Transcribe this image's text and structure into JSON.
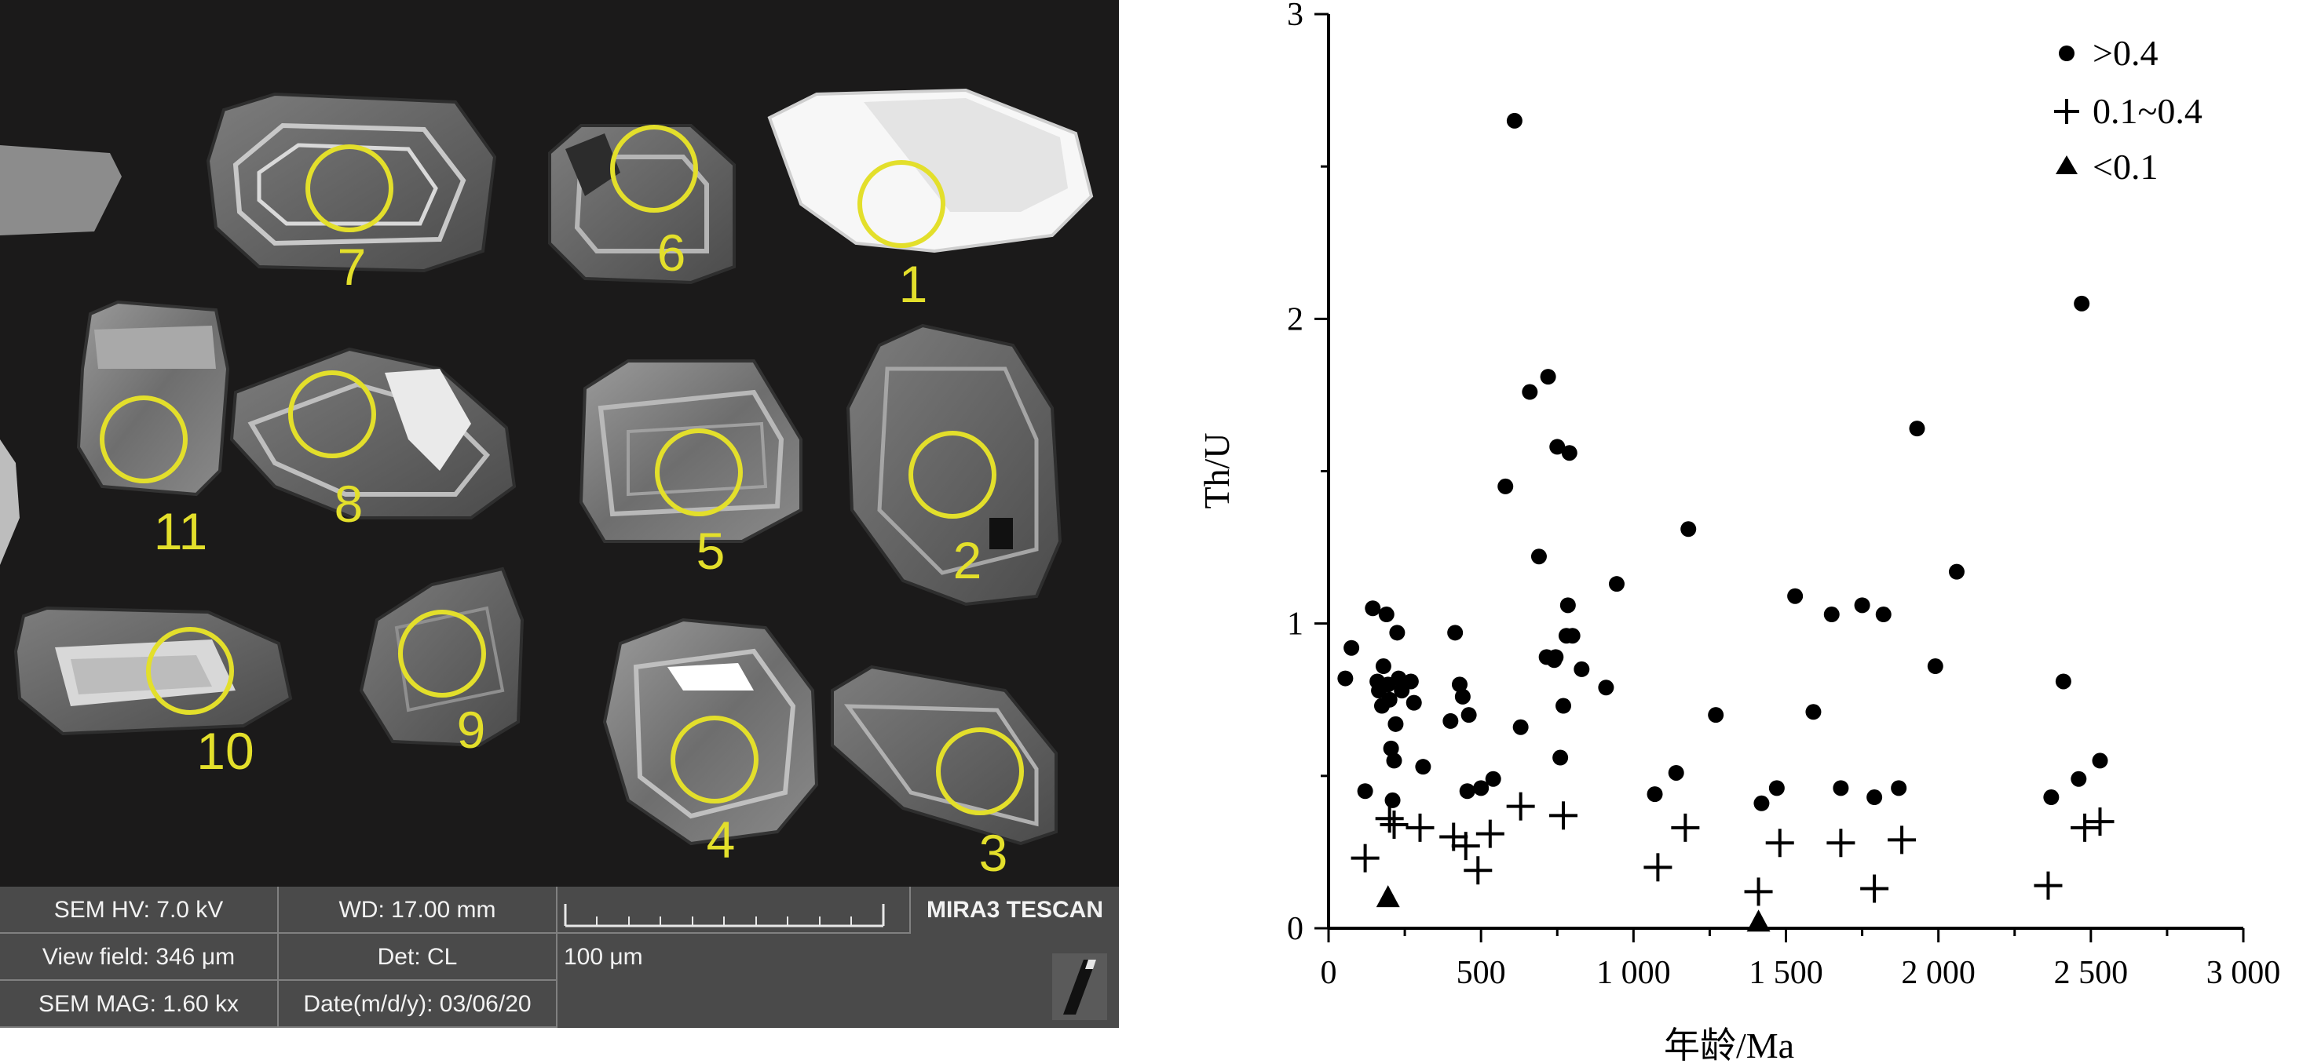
{
  "sem_image": {
    "grain_labels": [
      "1",
      "2",
      "3",
      "4",
      "5",
      "6",
      "7",
      "8",
      "9",
      "10",
      "11"
    ],
    "info": {
      "hv": "SEM HV: 7.0 kV",
      "wd": "WD: 17.00 mm",
      "view_field": "View field: 346 μm",
      "det": "Det: CL",
      "mag": "SEM MAG: 1.60 kx",
      "date": "Date(m/d/y): 03/06/20",
      "scale": "100 μm",
      "brand": "MIRA3 TESCAN"
    }
  },
  "chart_data": {
    "type": "scatter",
    "xlabel": "年龄/Ma",
    "ylabel": "Th/U",
    "xlim": [
      0,
      3000
    ],
    "ylim": [
      0,
      3
    ],
    "xticks": [
      "0",
      "500",
      "1 000",
      "1 500",
      "2 000",
      "2 500",
      "3 000"
    ],
    "yticks": [
      "0",
      "1",
      "2",
      "3"
    ],
    "legend_position": "top-right",
    "series": [
      {
        "name": ">0.4",
        "marker": "circle",
        "points": [
          [
            55,
            0.82
          ],
          [
            75,
            0.92
          ],
          [
            120,
            0.45
          ],
          [
            145,
            1.05
          ],
          [
            160,
            0.81
          ],
          [
            165,
            0.78
          ],
          [
            175,
            0.73
          ],
          [
            180,
            0.86
          ],
          [
            190,
            1.03
          ],
          [
            195,
            0.8
          ],
          [
            200,
            0.75
          ],
          [
            205,
            0.59
          ],
          [
            210,
            0.42
          ],
          [
            215,
            0.55
          ],
          [
            220,
            0.67
          ],
          [
            225,
            0.97
          ],
          [
            230,
            0.82
          ],
          [
            240,
            0.78
          ],
          [
            270,
            0.81
          ],
          [
            280,
            0.74
          ],
          [
            310,
            0.53
          ],
          [
            400,
            0.68
          ],
          [
            415,
            0.97
          ],
          [
            430,
            0.8
          ],
          [
            440,
            0.76
          ],
          [
            455,
            0.45
          ],
          [
            460,
            0.7
          ],
          [
            500,
            0.46
          ],
          [
            540,
            0.49
          ],
          [
            580,
            1.45
          ],
          [
            610,
            2.65
          ],
          [
            630,
            0.66
          ],
          [
            660,
            1.76
          ],
          [
            690,
            1.22
          ],
          [
            715,
            0.89
          ],
          [
            720,
            1.81
          ],
          [
            740,
            0.88
          ],
          [
            745,
            0.89
          ],
          [
            750,
            1.58
          ],
          [
            760,
            0.56
          ],
          [
            770,
            0.73
          ],
          [
            780,
            0.96
          ],
          [
            785,
            1.06
          ],
          [
            790,
            1.56
          ],
          [
            800,
            0.96
          ],
          [
            830,
            0.85
          ],
          [
            910,
            0.79
          ],
          [
            945,
            1.13
          ],
          [
            1070,
            0.44
          ],
          [
            1140,
            0.51
          ],
          [
            1180,
            1.31
          ],
          [
            1270,
            0.7
          ],
          [
            1420,
            0.41
          ],
          [
            1470,
            0.46
          ],
          [
            1530,
            1.09
          ],
          [
            1590,
            0.71
          ],
          [
            1650,
            1.03
          ],
          [
            1680,
            0.46
          ],
          [
            1750,
            1.06
          ],
          [
            1790,
            0.43
          ],
          [
            1820,
            1.03
          ],
          [
            1870,
            0.46
          ],
          [
            1930,
            1.64
          ],
          [
            1990,
            0.86
          ],
          [
            2060,
            1.17
          ],
          [
            2370,
            0.43
          ],
          [
            2410,
            0.81
          ],
          [
            2460,
            0.49
          ],
          [
            2470,
            2.05
          ],
          [
            2530,
            0.55
          ]
        ]
      },
      {
        "name": "0.1~0.4",
        "marker": "plus",
        "points": [
          [
            120,
            0.23
          ],
          [
            200,
            0.36
          ],
          [
            215,
            0.34
          ],
          [
            300,
            0.33
          ],
          [
            410,
            0.3
          ],
          [
            450,
            0.27
          ],
          [
            490,
            0.19
          ],
          [
            530,
            0.31
          ],
          [
            630,
            0.4
          ],
          [
            770,
            0.37
          ],
          [
            1080,
            0.2
          ],
          [
            1170,
            0.33
          ],
          [
            1410,
            0.12
          ],
          [
            1480,
            0.28
          ],
          [
            1680,
            0.28
          ],
          [
            1790,
            0.13
          ],
          [
            1880,
            0.29
          ],
          [
            2360,
            0.14
          ],
          [
            2480,
            0.33
          ],
          [
            2530,
            0.35
          ]
        ]
      },
      {
        "name": "<0.1",
        "marker": "triangle",
        "points": [
          [
            195,
            0.1
          ],
          [
            1410,
            0.02
          ]
        ]
      }
    ]
  }
}
